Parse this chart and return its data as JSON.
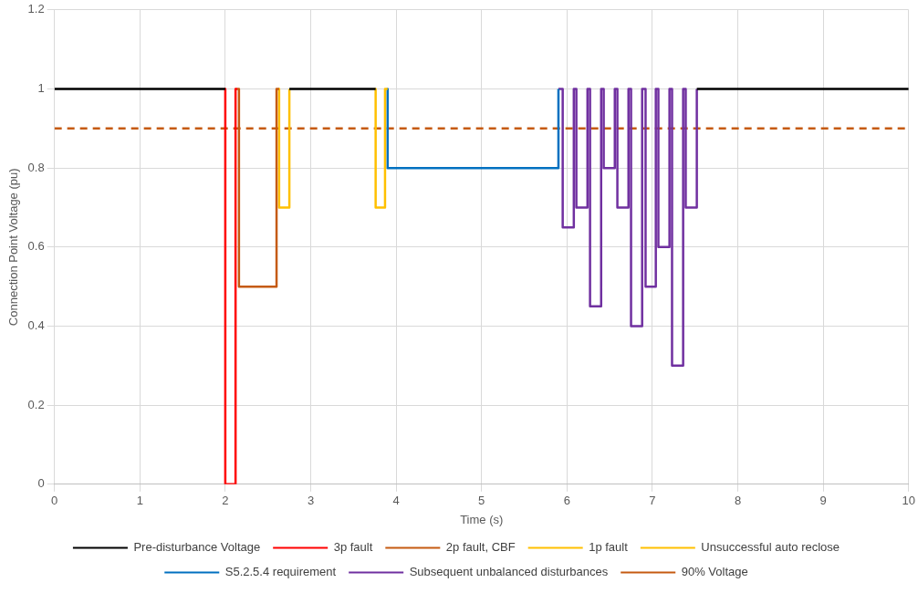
{
  "chart_data": {
    "type": "line",
    "xlabel": "Time (s)",
    "ylabel": "Connection Point Voltage (pu)",
    "xlim": [
      0,
      10
    ],
    "xticks": [
      0,
      1,
      2,
      3,
      4,
      5,
      6,
      7,
      8,
      9,
      10
    ],
    "ylim": [
      0,
      1.2
    ],
    "yticks": [
      0,
      0.2,
      0.4,
      0.6,
      0.8,
      1,
      1.2
    ],
    "grid": true,
    "legend": "bottom",
    "marker": "none",
    "series": [
      {
        "name": "Pre-disturbance Voltage",
        "color": "#000000",
        "x": [
          0,
          2,
          2.01,
          2.75,
          3.76,
          3.77,
          7.52,
          10
        ],
        "values": [
          1,
          1,
          null,
          1,
          1,
          null,
          1,
          1
        ]
      },
      {
        "name": "3p fault",
        "color": "#ff0000",
        "x": [
          2,
          2,
          2.12,
          2.12,
          2.14
        ],
        "values": [
          1,
          0,
          0,
          1,
          1
        ]
      },
      {
        "name": "2p fault, CBF",
        "color": "#c55a11",
        "x": [
          2.14,
          2.16,
          2.16,
          2.6,
          2.6,
          2.63
        ],
        "values": [
          1,
          1,
          0.5,
          0.5,
          1,
          1
        ]
      },
      {
        "name": "1p fault",
        "color": "#ffc000",
        "x": [
          2.63,
          2.63,
          2.75,
          2.75
        ],
        "values": [
          1,
          0.7,
          0.7,
          1
        ]
      },
      {
        "name": "Unsuccessful auto reclose",
        "color": "#ffc000",
        "x": [
          3.76,
          3.76,
          3.87,
          3.87,
          3.9
        ],
        "values": [
          1,
          0.7,
          0.7,
          1,
          1
        ]
      },
      {
        "name": "S5.2.5.4 requirement",
        "color": "#0070c0",
        "x": [
          3.9,
          3.9,
          5.9,
          5.9
        ],
        "values": [
          1,
          0.8,
          0.8,
          1
        ]
      },
      {
        "name": "Subsequent unbalanced disturbances",
        "color": "#7030a0",
        "x": [
          5.9,
          5.95,
          5.95,
          6.08,
          6.08,
          6.11,
          6.11,
          6.24,
          6.24,
          6.27,
          6.27,
          6.4,
          6.4,
          6.43,
          6.43,
          6.56,
          6.56,
          6.59,
          6.59,
          6.72,
          6.72,
          6.75,
          6.75,
          6.88,
          6.88,
          6.92,
          6.92,
          7.04,
          7.04,
          7.07,
          7.07,
          7.2,
          7.2,
          7.23,
          7.23,
          7.36,
          7.36,
          7.39,
          7.39,
          7.52,
          7.52
        ],
        "values": [
          1,
          1,
          0.65,
          0.65,
          1,
          1,
          0.7,
          0.7,
          1,
          1,
          0.45,
          0.45,
          1,
          1,
          0.8,
          0.8,
          1,
          1,
          0.7,
          0.7,
          1,
          1,
          0.4,
          0.4,
          1,
          1,
          0.5,
          0.5,
          1,
          1,
          0.6,
          0.6,
          1,
          1,
          0.3,
          0.3,
          1,
          1,
          0.7,
          0.7,
          1
        ]
      },
      {
        "name": "90% Voltage",
        "color": "#c55a11",
        "line_style": "dashed",
        "x": [
          0,
          10
        ],
        "values": [
          0.9,
          0.9
        ]
      }
    ]
  }
}
